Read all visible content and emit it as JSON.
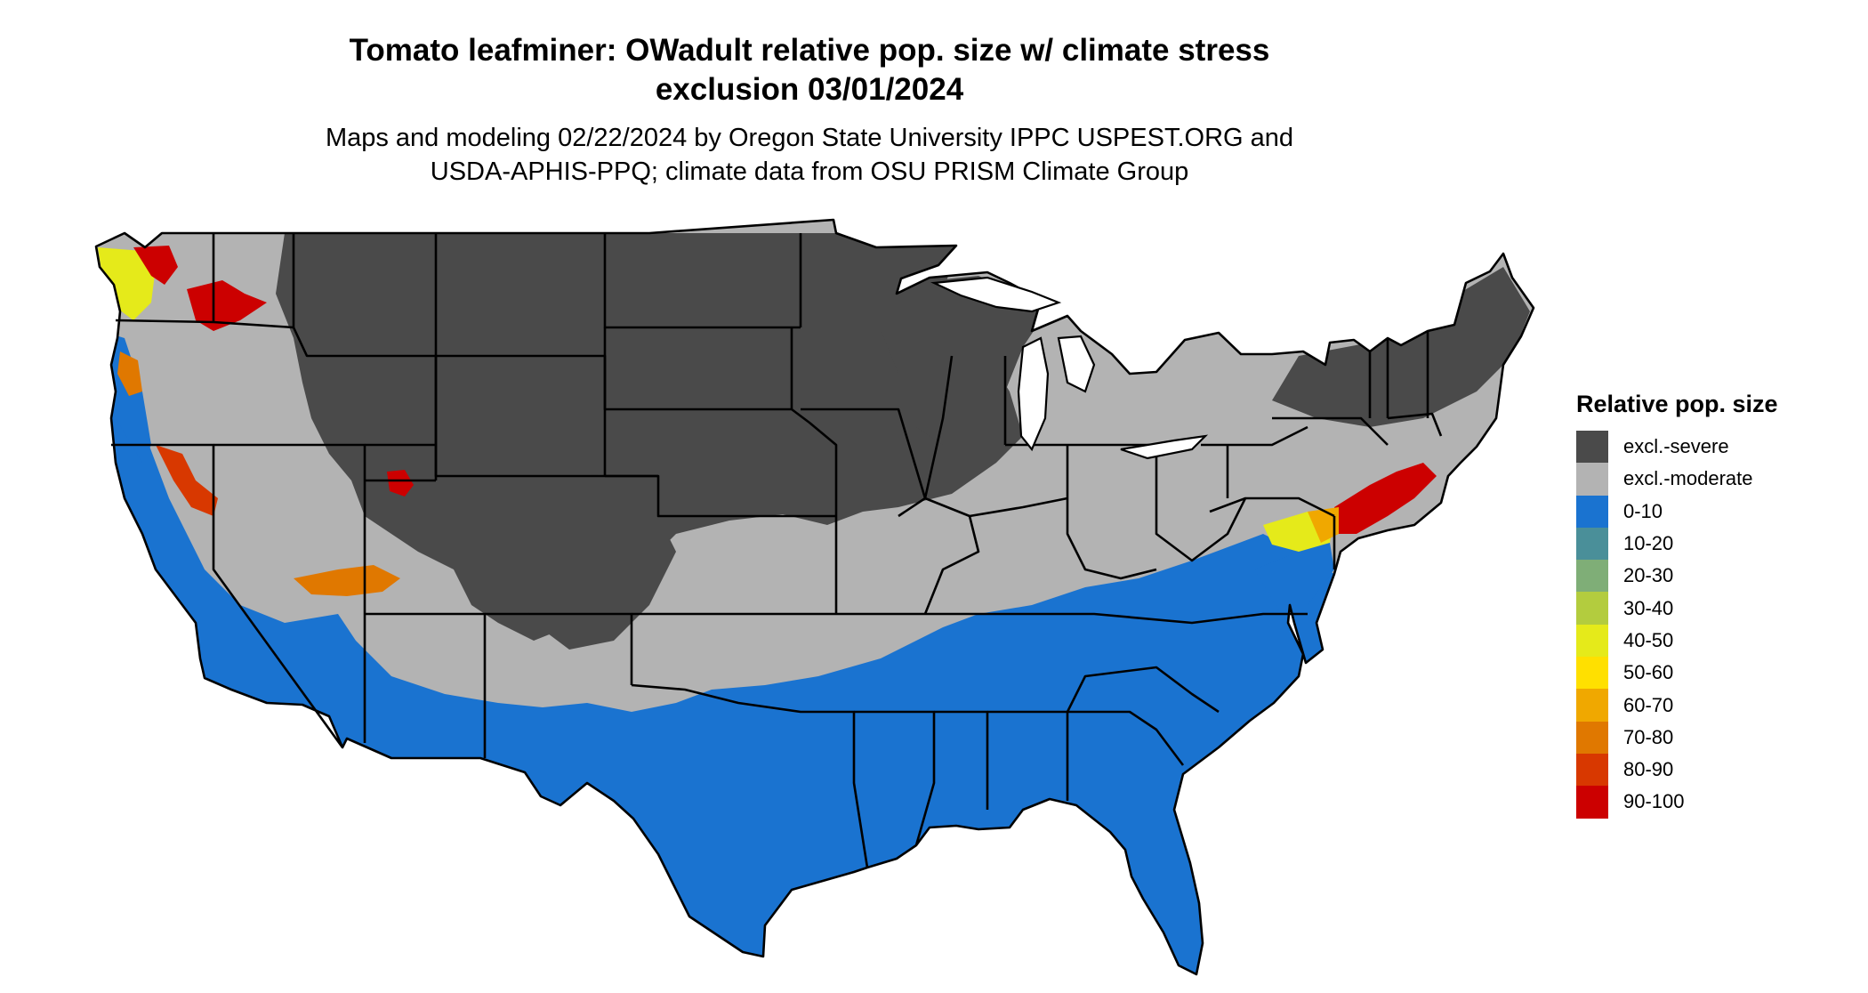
{
  "title": {
    "line1": "Tomato leafminer: OWadult relative pop. size w/ climate stress",
    "line2": "exclusion 03/01/2024"
  },
  "subtitle": {
    "line1": "Maps and modeling 02/22/2024 by Oregon State University IPPC USPEST.ORG and",
    "line2": "USDA-APHIS-PPQ; climate data from OSU PRISM Climate Group"
  },
  "legend": {
    "title": "Relative pop. size",
    "items": [
      {
        "label": "excl.-severe",
        "color": "#4a4a4a"
      },
      {
        "label": "excl.-moderate",
        "color": "#b3b3b3"
      },
      {
        "label": "0-10",
        "color": "#1a73d0"
      },
      {
        "label": "10-20",
        "color": "#4a8f99"
      },
      {
        "label": "20-30",
        "color": "#7fae77"
      },
      {
        "label": "30-40",
        "color": "#b3cc3e"
      },
      {
        "label": "40-50",
        "color": "#e5ea1a"
      },
      {
        "label": "50-60",
        "color": "#ffe000"
      },
      {
        "label": "60-70",
        "color": "#f0a800"
      },
      {
        "label": "70-80",
        "color": "#e07800"
      },
      {
        "label": "80-90",
        "color": "#d83800"
      },
      {
        "label": "90-100",
        "color": "#cc0000"
      }
    ]
  },
  "map": {
    "colors": {
      "severe": "#4a4a4a",
      "moderate": "#b3b3b3",
      "low": "#1a73d0",
      "high": "#cc0000",
      "orange": "#e07800",
      "yellow": "#e5ea1a",
      "border": "#000000"
    }
  }
}
